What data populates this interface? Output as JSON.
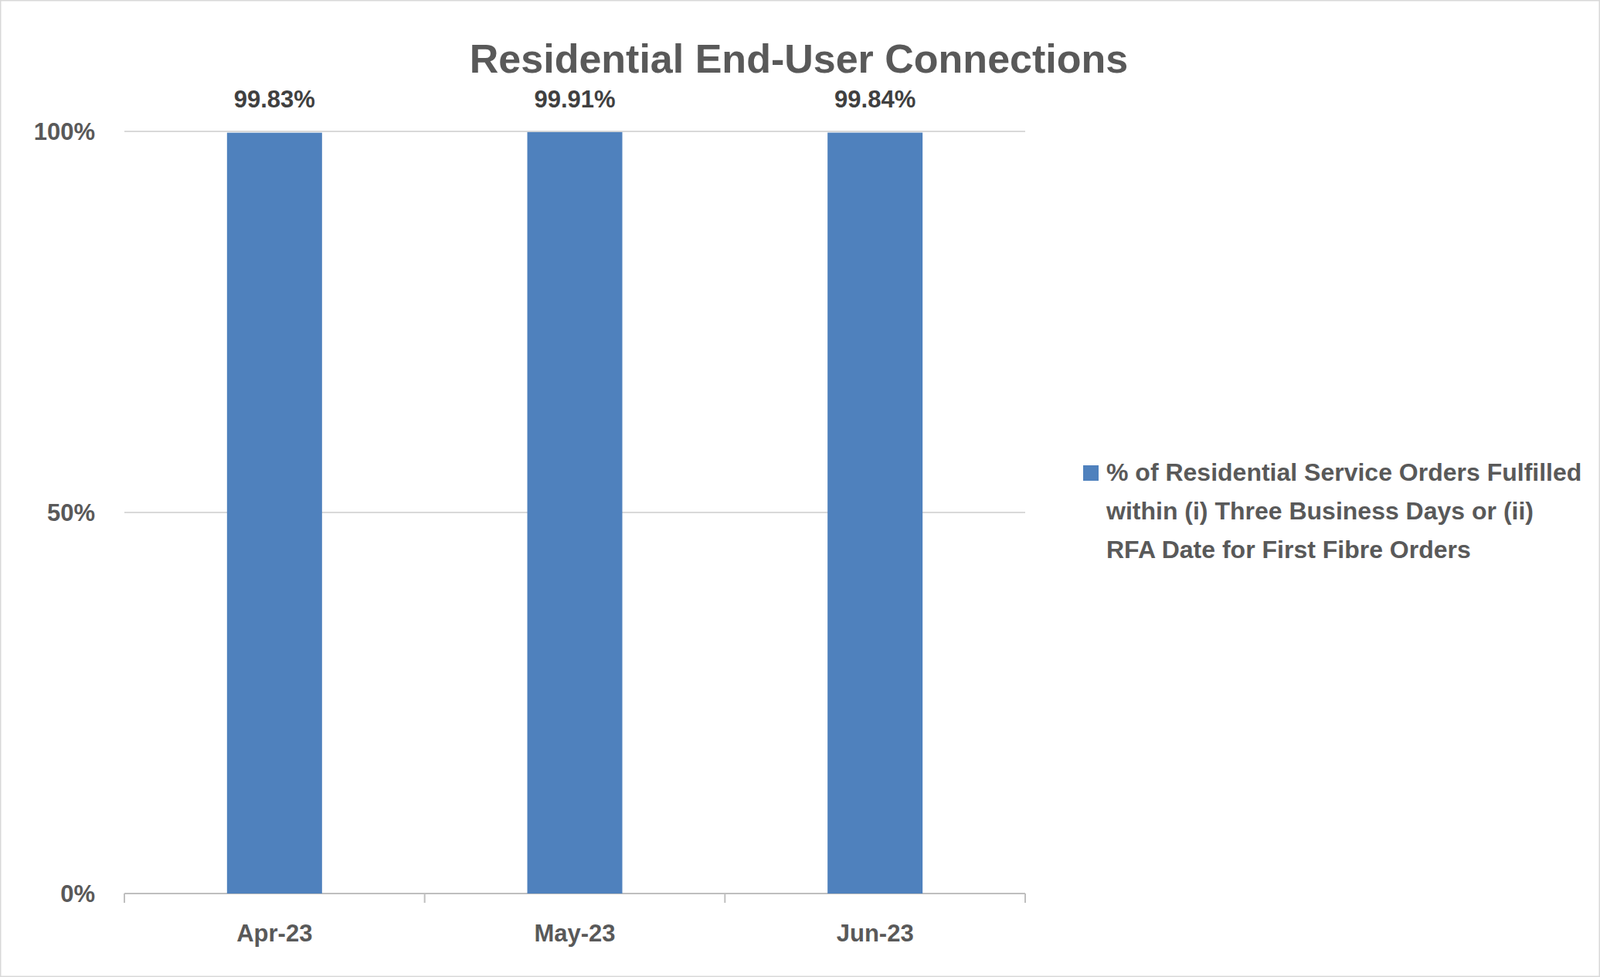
{
  "chart_data": {
    "type": "bar",
    "title": "Residential End-User Connections",
    "categories": [
      "Apr-23",
      "May-23",
      "Jun-23"
    ],
    "series": [
      {
        "name": "% of Residential Service Orders Fulfilled within (i) Three Business Days or (ii) RFA Date for First Fibre Orders",
        "color": "#4f81bd",
        "values": [
          99.83,
          99.91,
          99.84
        ],
        "value_labels": [
          "99.83%",
          "99.91%",
          "99.84%"
        ]
      }
    ],
    "ylim": [
      0,
      100
    ],
    "yticks": [
      {
        "value": 0,
        "label": "0%"
      },
      {
        "value": 50,
        "label": "50%"
      },
      {
        "value": 100,
        "label": "100%"
      }
    ],
    "grid": true,
    "legend": "right",
    "data_labels": true
  }
}
